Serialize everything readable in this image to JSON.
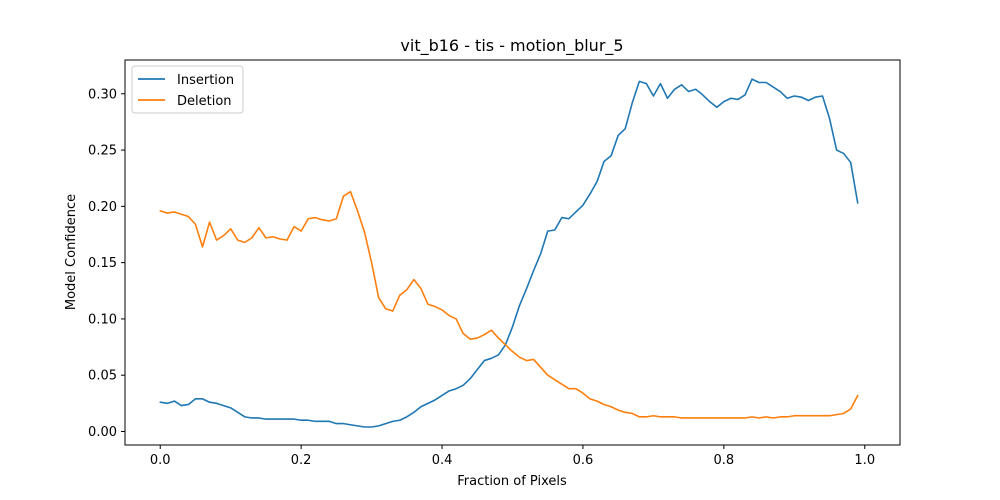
{
  "chart_data": {
    "type": "line",
    "title": "vit_b16 - tis - motion_blur_5",
    "xlabel": "Fraction of Pixels",
    "ylabel": "Model Confidence",
    "xlim": [
      -0.05,
      1.05
    ],
    "ylim": [
      -0.012,
      0.33
    ],
    "xticks": [
      0.0,
      0.2,
      0.4,
      0.6,
      0.8,
      1.0
    ],
    "xtick_labels": [
      "0.0",
      "0.2",
      "0.4",
      "0.6",
      "0.8",
      "1.0"
    ],
    "yticks": [
      0.0,
      0.05,
      0.1,
      0.15,
      0.2,
      0.25,
      0.3
    ],
    "ytick_labels": [
      "0.00",
      "0.05",
      "0.10",
      "0.15",
      "0.20",
      "0.25",
      "0.30"
    ],
    "legend_position": "top-left",
    "grid": false,
    "x_start": 0.0,
    "x_step": 0.01,
    "series": [
      {
        "name": "Insertion",
        "color": "#1f77b4",
        "values": [
          0.026,
          0.025,
          0.027,
          0.023,
          0.024,
          0.029,
          0.029,
          0.026,
          0.025,
          0.023,
          0.021,
          0.017,
          0.013,
          0.012,
          0.012,
          0.011,
          0.011,
          0.011,
          0.011,
          0.011,
          0.01,
          0.01,
          0.009,
          0.009,
          0.009,
          0.007,
          0.007,
          0.006,
          0.005,
          0.004,
          0.004,
          0.005,
          0.007,
          0.009,
          0.01,
          0.013,
          0.017,
          0.022,
          0.025,
          0.028,
          0.032,
          0.036,
          0.038,
          0.041,
          0.047,
          0.055,
          0.063,
          0.065,
          0.068,
          0.077,
          0.093,
          0.112,
          0.127,
          0.143,
          0.158,
          0.178,
          0.179,
          0.19,
          0.189,
          0.195,
          0.201,
          0.211,
          0.222,
          0.24,
          0.245,
          0.263,
          0.269,
          0.292,
          0.311,
          0.309,
          0.298,
          0.309,
          0.296,
          0.304,
          0.308,
          0.302,
          0.304,
          0.299,
          0.293,
          0.288,
          0.293,
          0.296,
          0.295,
          0.299,
          0.313,
          0.31,
          0.31,
          0.306,
          0.302,
          0.296,
          0.298,
          0.297,
          0.294,
          0.297,
          0.298,
          0.278,
          0.25,
          0.247,
          0.239,
          0.203
        ]
      },
      {
        "name": "Deletion",
        "color": "#ff7f0e",
        "values": [
          0.196,
          0.194,
          0.195,
          0.193,
          0.191,
          0.184,
          0.164,
          0.186,
          0.17,
          0.174,
          0.18,
          0.17,
          0.168,
          0.172,
          0.181,
          0.172,
          0.173,
          0.171,
          0.17,
          0.182,
          0.178,
          0.189,
          0.19,
          0.188,
          0.187,
          0.189,
          0.209,
          0.213,
          0.196,
          0.177,
          0.15,
          0.119,
          0.109,
          0.107,
          0.121,
          0.126,
          0.135,
          0.127,
          0.113,
          0.111,
          0.108,
          0.103,
          0.1,
          0.087,
          0.082,
          0.083,
          0.086,
          0.09,
          0.083,
          0.077,
          0.071,
          0.066,
          0.063,
          0.064,
          0.057,
          0.05,
          0.046,
          0.042,
          0.038,
          0.038,
          0.034,
          0.029,
          0.027,
          0.024,
          0.022,
          0.019,
          0.017,
          0.016,
          0.013,
          0.013,
          0.014,
          0.013,
          0.013,
          0.013,
          0.012,
          0.012,
          0.012,
          0.012,
          0.012,
          0.012,
          0.012,
          0.012,
          0.012,
          0.012,
          0.013,
          0.012,
          0.013,
          0.012,
          0.013,
          0.013,
          0.014,
          0.014,
          0.014,
          0.014,
          0.014,
          0.014,
          0.015,
          0.016,
          0.02,
          0.032
        ]
      }
    ]
  }
}
